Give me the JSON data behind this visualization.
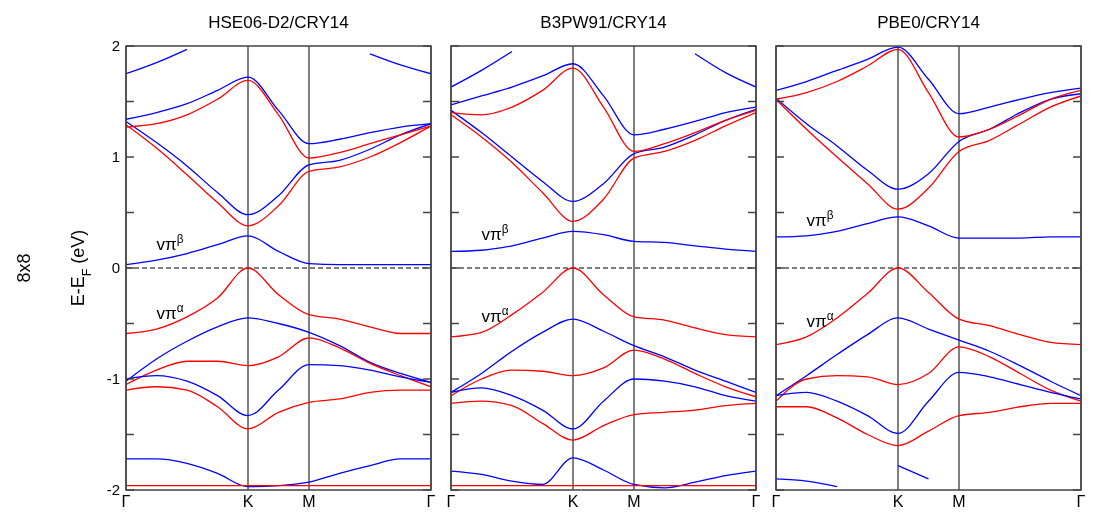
{
  "chart_data": [
    {
      "type": "line",
      "title": "HSE06-D2/CRY14",
      "ylabel": "E-E$_{F}$ (eV)",
      "annotations": [
        "8x8"
      ],
      "categories": [
        "Γ",
        null,
        null,
        null,
        "K",
        null,
        "M",
        null,
        null,
        null,
        "Γ"
      ],
      "ylim": [
        -2,
        2
      ],
      "yticks": [
        -2,
        {
          "value": -1.5,
          "label": null
        },
        -1,
        {
          "value": -0.5,
          "label": null
        },
        0,
        {
          "value": 0.5,
          "label": null
        },
        1,
        {
          "value": 1.5,
          "label": null
        },
        2
      ],
      "grid": "x",
      "marker": "none",
      "ref_lines": [
        {
          "axis": "y",
          "value": 0,
          "line_style": "dashed",
          "color": "#000000"
        }
      ],
      "series": [
        {
          "name": "vπ$^{β}$",
          "color": "#0000ff",
          "values": [
            0.03,
            0.07,
            0.13,
            0.21,
            0.29,
            0.15,
            0.04,
            0.03,
            0.03,
            0.03,
            0.03
          ]
        },
        {
          "name": "vπ$^{α}$",
          "color": "#ff0000",
          "values": [
            -0.59,
            -0.55,
            -0.44,
            -0.27,
            0,
            -0.24,
            -0.42,
            -0.46,
            -0.53,
            -0.59,
            -0.59
          ]
        },
        {
          "color": "#0000ff",
          "values": [
            1.32,
            1.13,
            0.92,
            0.68,
            0.48,
            0.65,
            0.93,
            0.97,
            1.07,
            1.2,
            1.3
          ]
        },
        {
          "color": "#ff0000",
          "values": [
            1.29,
            1.08,
            0.84,
            0.59,
            0.38,
            0.56,
            0.87,
            0.91,
            1.0,
            1.13,
            1.28
          ]
        },
        {
          "color": "#0000ff",
          "values": [
            1.34,
            1.4,
            1.48,
            1.6,
            1.72,
            1.42,
            1.12,
            1.16,
            1.22,
            1.27,
            1.3
          ]
        },
        {
          "color": "#ff0000",
          "values": [
            1.27,
            1.3,
            1.38,
            1.52,
            1.69,
            1.38,
            0.99,
            1.04,
            1.12,
            1.2,
            1.28
          ]
        },
        {
          "color": "#0000ff",
          "values": [
            1.75,
            1.85,
            1.97,
            null,
            null,
            null,
            null,
            null,
            1.93,
            1.83,
            1.75
          ]
        },
        {
          "color": "#0000ff",
          "values": [
            -1.02,
            -0.82,
            -0.66,
            -0.53,
            -0.45,
            -0.5,
            -0.58,
            -0.7,
            -0.85,
            -0.95,
            -1.03
          ]
        },
        {
          "color": "#ff0000",
          "values": [
            -1.05,
            -0.92,
            -0.84,
            -0.84,
            -0.88,
            -0.8,
            -0.63,
            -0.72,
            -0.86,
            -0.97,
            -1.07
          ]
        },
        {
          "color": "#0000ff",
          "values": [
            -1.0,
            -0.97,
            -1.02,
            -1.15,
            -1.33,
            -1.1,
            -0.87,
            -0.88,
            -0.92,
            -0.98,
            -1.03
          ]
        },
        {
          "color": "#ff0000",
          "values": [
            -1.1,
            -1.07,
            -1.1,
            -1.25,
            -1.45,
            -1.3,
            -1.21,
            -1.18,
            -1.12,
            -1.1,
            -1.1
          ]
        },
        {
          "color": "#0000ff",
          "values": [
            -1.72,
            -1.72,
            -1.76,
            -1.85,
            -1.97,
            -1.96,
            -1.93,
            -1.85,
            -1.78,
            -1.72,
            -1.72
          ]
        },
        {
          "color": "#ff0000",
          "values": [
            -1.96,
            -1.96,
            -1.96,
            -1.96,
            -1.96,
            -1.96,
            -1.96,
            -1.96,
            -1.96,
            -1.96,
            -1.96
          ]
        }
      ]
    },
    {
      "type": "line",
      "title": "B3PW91/CRY14",
      "categories": [
        "Γ",
        null,
        null,
        null,
        "K",
        null,
        "M",
        null,
        null,
        null,
        "Γ"
      ],
      "ylim": [
        -2,
        2
      ],
      "yticks": [
        -2,
        {
          "value": -1.5,
          "label": null
        },
        -1,
        {
          "value": -0.5,
          "label": null
        },
        0,
        {
          "value": 0.5,
          "label": null
        },
        1,
        {
          "value": 1.5,
          "label": null
        },
        2
      ],
      "tick_labels": "x",
      "grid": "x",
      "marker": "none",
      "ref_lines": [
        {
          "axis": "y",
          "value": 0,
          "line_style": "dashed",
          "color": "#000000"
        }
      ],
      "series": [
        {
          "name": "vπ$^{β}$",
          "color": "#0000ff",
          "values": [
            0.15,
            0.16,
            0.2,
            0.27,
            0.33,
            0.3,
            0.24,
            0.23,
            0.2,
            0.17,
            0.15
          ]
        },
        {
          "name": "vπ$^{α}$",
          "color": "#ff0000",
          "values": [
            -0.62,
            -0.58,
            -0.42,
            -0.22,
            0,
            -0.24,
            -0.44,
            -0.47,
            -0.54,
            -0.6,
            -0.62
          ]
        },
        {
          "color": "#0000ff",
          "values": [
            1.42,
            1.22,
            1.0,
            0.78,
            0.6,
            0.76,
            1.03,
            1.09,
            1.2,
            1.33,
            1.43
          ]
        },
        {
          "color": "#ff0000",
          "values": [
            1.38,
            1.18,
            0.95,
            0.68,
            0.42,
            0.62,
            0.99,
            1.05,
            1.15,
            1.28,
            1.4
          ]
        },
        {
          "color": "#0000ff",
          "values": [
            1.47,
            1.55,
            1.63,
            1.73,
            1.84,
            1.55,
            1.2,
            1.25,
            1.32,
            1.4,
            1.45
          ]
        },
        {
          "color": "#ff0000",
          "values": [
            1.4,
            1.38,
            1.45,
            1.6,
            1.8,
            1.45,
            1.05,
            1.12,
            1.22,
            1.33,
            1.42
          ]
        },
        {
          "color": "#0000ff",
          "values": [
            1.63,
            1.78,
            1.95,
            null,
            null,
            null,
            null,
            null,
            1.93,
            1.76,
            1.63
          ]
        },
        {
          "color": "#0000ff",
          "values": [
            -1.12,
            -0.95,
            -0.75,
            -0.58,
            -0.46,
            -0.57,
            -0.7,
            -0.8,
            -0.92,
            -1.02,
            -1.12
          ]
        },
        {
          "color": "#ff0000",
          "values": [
            -1.15,
            -1.0,
            -0.92,
            -0.93,
            -0.97,
            -0.9,
            -0.74,
            -0.82,
            -0.95,
            -1.07,
            -1.16
          ]
        },
        {
          "color": "#0000ff",
          "values": [
            -1.12,
            -1.08,
            -1.15,
            -1.28,
            -1.45,
            -1.2,
            -1.0,
            -1.02,
            -1.07,
            -1.15,
            -1.2
          ]
        },
        {
          "color": "#ff0000",
          "values": [
            -1.22,
            -1.2,
            -1.24,
            -1.4,
            -1.55,
            -1.42,
            -1.32,
            -1.3,
            -1.28,
            -1.24,
            -1.22
          ]
        },
        {
          "color": "#0000ff",
          "values": [
            -1.83,
            -1.86,
            -1.92,
            -1.95,
            -1.71,
            -1.82,
            -1.95,
            -1.98,
            -1.93,
            -1.87,
            -1.83
          ]
        },
        {
          "color": "#ff0000",
          "values": [
            -1.96,
            -1.96,
            -1.96,
            -1.96,
            -1.96,
            -1.96,
            -1.96,
            -1.96,
            -1.96,
            -1.96,
            -1.96
          ]
        }
      ]
    },
    {
      "type": "line",
      "title": "PBE0/CRY14",
      "categories": [
        "Γ",
        null,
        null,
        null,
        "K",
        null,
        "M",
        null,
        null,
        null,
        "Γ"
      ],
      "ylim": [
        -2,
        2
      ],
      "yticks": [
        -2,
        {
          "value": -1.5,
          "label": null
        },
        -1,
        {
          "value": -0.5,
          "label": null
        },
        0,
        {
          "value": 0.5,
          "label": null
        },
        1,
        {
          "value": 1.5,
          "label": null
        },
        2
      ],
      "tick_labels": "x",
      "grid": "x",
      "marker": "none",
      "ref_lines": [
        {
          "axis": "y",
          "value": 0,
          "line_style": "dashed",
          "color": "#000000"
        }
      ],
      "series": [
        {
          "name": "vπ$^{β}$",
          "color": "#0000ff",
          "values": [
            0.28,
            0.29,
            0.33,
            0.4,
            0.46,
            0.38,
            0.27,
            0.27,
            0.27,
            0.28,
            0.28
          ]
        },
        {
          "name": "vπ$^{α}$",
          "color": "#ff0000",
          "values": [
            -0.69,
            -0.62,
            -0.45,
            -0.23,
            0,
            -0.22,
            -0.46,
            -0.52,
            -0.6,
            -0.67,
            -0.69
          ]
        },
        {
          "color": "#0000ff",
          "values": [
            1.53,
            1.3,
            1.1,
            0.88,
            0.71,
            0.85,
            1.14,
            1.25,
            1.4,
            1.52,
            1.57
          ]
        },
        {
          "color": "#ff0000",
          "values": [
            1.52,
            1.25,
            1.0,
            0.76,
            0.53,
            0.72,
            1.05,
            1.15,
            1.3,
            1.45,
            1.55
          ]
        },
        {
          "color": "#0000ff",
          "values": [
            1.6,
            1.68,
            1.78,
            1.88,
            1.99,
            1.7,
            1.39,
            1.45,
            1.52,
            1.58,
            1.62
          ]
        },
        {
          "color": "#ff0000",
          "values": [
            1.52,
            1.58,
            1.68,
            1.82,
            1.97,
            1.58,
            1.18,
            1.25,
            1.38,
            1.52,
            1.6
          ]
        },
        {
          "color": "#0000ff",
          "values": [
            -1.15,
            -0.97,
            -0.78,
            -0.6,
            -0.45,
            -0.55,
            -0.65,
            -0.75,
            -0.88,
            -1.02,
            -1.15
          ]
        },
        {
          "color": "#ff0000",
          "values": [
            -1.2,
            -1.0,
            -0.97,
            -0.98,
            -1.05,
            -0.95,
            -0.71,
            -0.8,
            -0.95,
            -1.1,
            -1.2
          ]
        },
        {
          "color": "#0000ff",
          "values": [
            -1.15,
            -1.12,
            -1.2,
            -1.33,
            -1.49,
            -1.2,
            -0.94,
            -0.98,
            -1.05,
            -1.12,
            -1.18
          ]
        },
        {
          "color": "#ff0000",
          "values": [
            -1.25,
            -1.25,
            -1.35,
            -1.5,
            -1.6,
            -1.47,
            -1.33,
            -1.3,
            -1.25,
            -1.22,
            -1.22
          ]
        },
        {
          "color": "#0000ff",
          "values": [
            -1.9,
            -1.92,
            -1.97,
            null,
            -1.78,
            -1.9,
            null,
            null,
            null,
            null,
            null
          ]
        }
      ]
    }
  ]
}
